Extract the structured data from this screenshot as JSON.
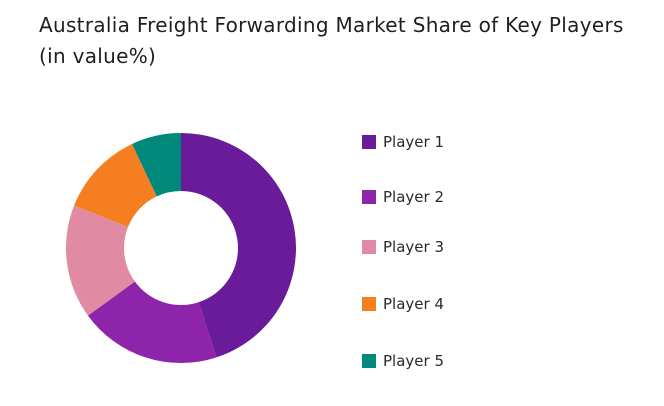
{
  "chart_data": {
    "type": "pie",
    "variant": "donut",
    "title": "Australia Freight Forwarding Market Share of Key Players (in value%)",
    "categories": [
      "Player 1",
      "Player 2",
      "Player 3",
      "Player 4",
      "Player 5"
    ],
    "values": [
      45,
      20,
      16,
      12,
      7
    ],
    "colors": [
      "#6a1b9a",
      "#8e24aa",
      "#e08aa3",
      "#f57f20",
      "#00897b"
    ],
    "legend_position": "right"
  }
}
